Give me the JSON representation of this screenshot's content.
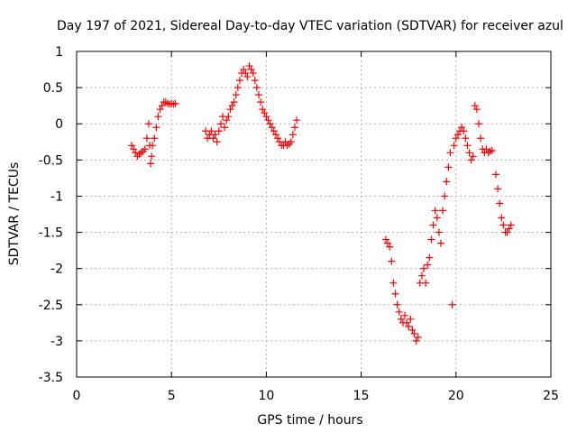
{
  "chart_data": {
    "type": "scatter",
    "title": "Day 197 of 2021, Sidereal Day-to-day VTEC variation (SDTVAR) for receiver azul",
    "xlabel": "GPS time / hours",
    "ylabel": "SDTVAR / TECUs",
    "xlim": [
      0,
      25
    ],
    "ylim": [
      -3.5,
      1
    ],
    "xticks": [
      0,
      5,
      10,
      15,
      20,
      25
    ],
    "yticks": [
      1,
      0.5,
      0,
      -0.5,
      -1,
      -1.5,
      -2,
      -2.5,
      -3,
      -3.5
    ],
    "xtick_labels": [
      "0",
      "5",
      "10",
      "15",
      "20",
      "25"
    ],
    "ytick_labels": [
      "1",
      "0.5",
      "0",
      "-0.5",
      "-1",
      "-1.5",
      "-2",
      "-2.5",
      "-3",
      "-3.5"
    ],
    "grid": true,
    "marker": "+",
    "series_color": "#ff0000",
    "series": [
      {
        "name": "SDTVAR",
        "x": [
          2.9,
          3.0,
          3.1,
          3.2,
          3.3,
          3.4,
          3.5,
          3.6,
          3.7,
          3.8,
          3.85,
          3.9,
          3.95,
          4.0,
          4.1,
          4.2,
          4.3,
          4.4,
          4.5,
          4.6,
          4.7,
          4.8,
          4.9,
          5.0,
          5.1,
          5.2,
          6.8,
          6.9,
          7.0,
          7.1,
          7.2,
          7.3,
          7.4,
          7.5,
          7.6,
          7.7,
          7.8,
          7.9,
          8.0,
          8.1,
          8.2,
          8.3,
          8.4,
          8.5,
          8.6,
          8.7,
          8.8,
          8.9,
          9.0,
          9.1,
          9.2,
          9.3,
          9.4,
          9.5,
          9.6,
          9.7,
          9.8,
          9.9,
          10.0,
          10.1,
          10.2,
          10.3,
          10.4,
          10.5,
          10.6,
          10.7,
          10.8,
          10.9,
          11.0,
          11.1,
          11.2,
          11.3,
          11.4,
          11.5,
          11.6,
          16.3,
          16.4,
          16.5,
          16.6,
          16.7,
          16.8,
          16.9,
          17.0,
          17.1,
          17.2,
          17.3,
          17.4,
          17.5,
          17.6,
          17.7,
          17.8,
          17.9,
          18.0,
          18.1,
          18.2,
          18.3,
          18.4,
          18.5,
          18.6,
          18.7,
          18.8,
          18.9,
          19.0,
          19.1,
          19.2,
          19.3,
          19.4,
          19.5,
          19.6,
          19.7,
          19.8,
          19.9,
          20.0,
          20.1,
          20.2,
          20.3,
          20.4,
          20.5,
          20.6,
          20.7,
          20.8,
          20.9,
          21.0,
          21.1,
          21.2,
          21.3,
          21.4,
          21.5,
          21.6,
          21.7,
          21.8,
          21.9,
          22.1,
          22.2,
          22.3,
          22.4,
          22.5,
          22.6,
          22.7,
          22.8,
          22.9
        ],
        "y": [
          -0.3,
          -0.35,
          -0.4,
          -0.45,
          -0.42,
          -0.4,
          -0.38,
          -0.35,
          -0.2,
          0.0,
          -0.3,
          -0.55,
          -0.45,
          -0.3,
          -0.2,
          -0.05,
          0.1,
          0.2,
          0.25,
          0.3,
          0.3,
          0.28,
          0.27,
          0.28,
          0.27,
          0.28,
          -0.1,
          -0.2,
          -0.15,
          -0.1,
          -0.2,
          -0.15,
          -0.25,
          -0.1,
          0.0,
          0.1,
          -0.05,
          0.05,
          0.1,
          0.2,
          0.25,
          0.3,
          0.4,
          0.5,
          0.6,
          0.7,
          0.75,
          0.7,
          0.65,
          0.8,
          0.75,
          0.7,
          0.6,
          0.5,
          0.4,
          0.3,
          0.2,
          0.15,
          0.1,
          0.05,
          0.0,
          -0.05,
          -0.1,
          -0.15,
          -0.2,
          -0.25,
          -0.3,
          -0.3,
          -0.25,
          -0.3,
          -0.28,
          -0.25,
          -0.15,
          -0.05,
          0.05,
          -1.6,
          -1.65,
          -1.7,
          -1.9,
          -2.2,
          -2.35,
          -2.5,
          -2.6,
          -2.7,
          -2.75,
          -2.65,
          -2.75,
          -2.8,
          -2.7,
          -2.85,
          -2.9,
          -3.0,
          -2.95,
          -2.2,
          -2.1,
          -2.0,
          -2.2,
          -1.95,
          -1.85,
          -1.6,
          -1.4,
          -1.2,
          -1.3,
          -1.5,
          -1.65,
          -1.2,
          -1.0,
          -0.8,
          -0.6,
          -0.4,
          -2.5,
          -0.3,
          -0.2,
          -0.15,
          -0.1,
          -0.05,
          -0.1,
          -0.2,
          -0.3,
          -0.4,
          -0.5,
          -0.45,
          0.25,
          0.2,
          0.0,
          -0.2,
          -0.35,
          -0.4,
          -0.35,
          -0.4,
          -0.38,
          -0.37,
          -0.7,
          -0.9,
          -1.1,
          -1.3,
          -1.4,
          -1.5,
          -1.5,
          -1.45,
          -1.4
        ]
      }
    ]
  }
}
